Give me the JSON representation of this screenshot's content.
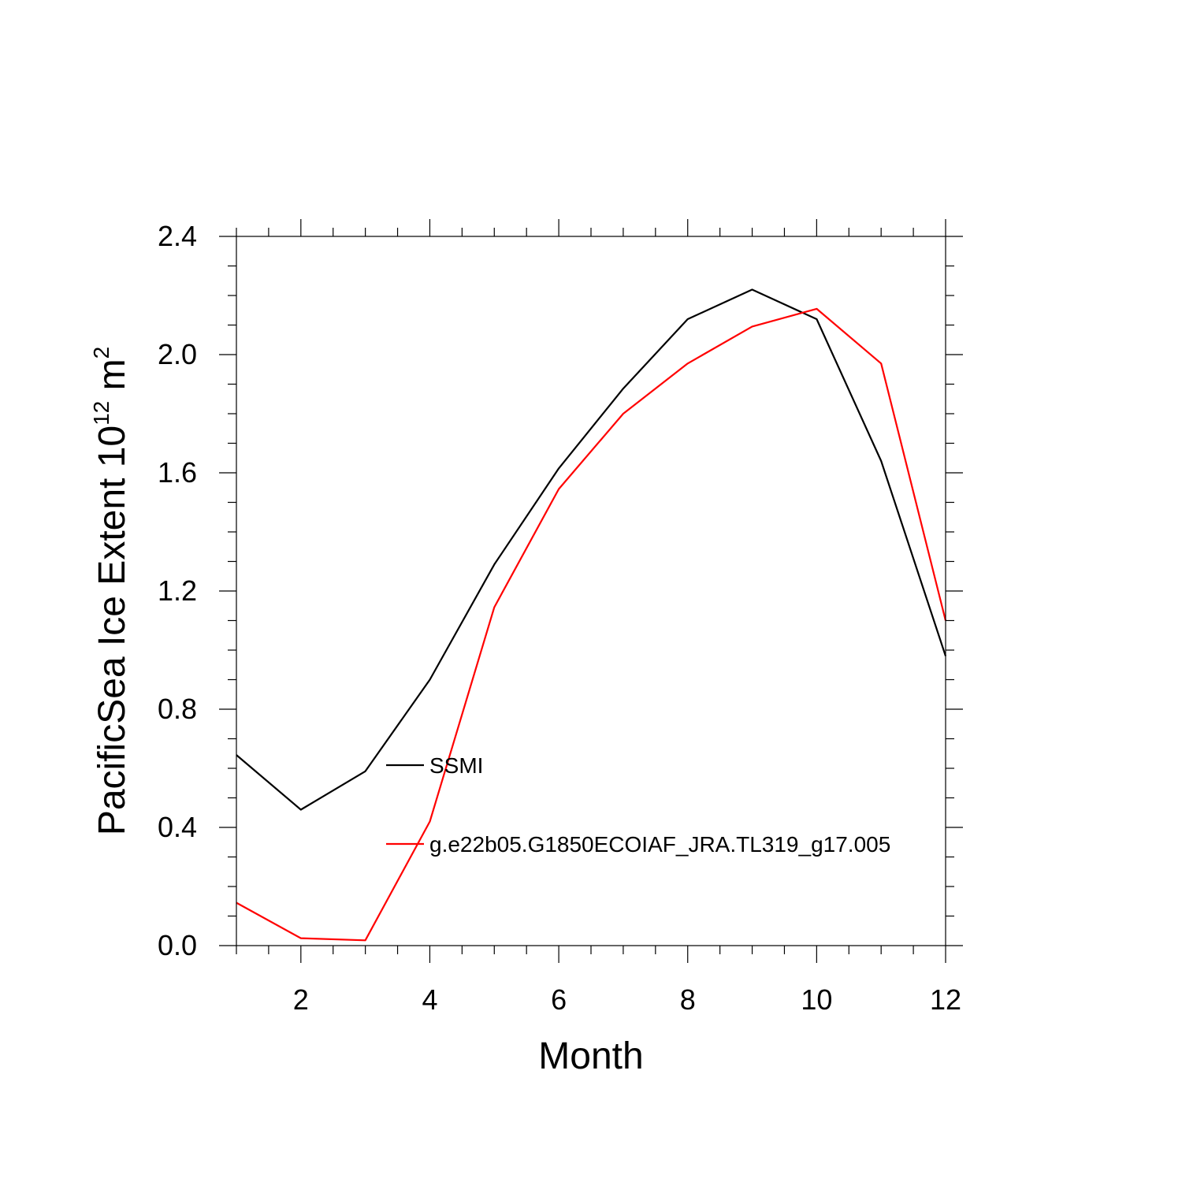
{
  "chart_data": {
    "type": "line",
    "xlabel": "Month",
    "ylabel": {
      "base": "PacificSea Ice Extent 10",
      "exponent": "12",
      "unit": " m",
      "unit_exponent": "2"
    },
    "xlim": [
      1,
      12
    ],
    "ylim": [
      0,
      2.4
    ],
    "x_ticks": [
      2,
      4,
      6,
      8,
      10,
      12
    ],
    "x_tick_labels": [
      "2",
      "4",
      "6",
      "8",
      "10",
      "12"
    ],
    "y_ticks": [
      0,
      0.4,
      0.8,
      1.2,
      1.6,
      2.0,
      2.4
    ],
    "y_tick_labels": [
      "0.0",
      "0.4",
      "0.8",
      "1.2",
      "1.6",
      "2.0",
      "2.4"
    ],
    "x": [
      1,
      2,
      3,
      4,
      5,
      6,
      7,
      8,
      9,
      10,
      11,
      12
    ],
    "series": [
      {
        "name": "SSMI",
        "color": "#000000",
        "values": [
          0.645,
          0.46,
          0.59,
          0.9,
          1.29,
          1.615,
          1.885,
          2.12,
          2.22,
          2.12,
          1.64,
          0.98
        ]
      },
      {
        "name": "g.e22b05.G1850ECOIAF_JRA.TL319_g17.005",
        "color": "#ff0000",
        "values": [
          0.145,
          0.025,
          0.018,
          0.42,
          1.145,
          1.545,
          1.8,
          1.97,
          2.095,
          2.155,
          1.97,
          1.1
        ]
      }
    ],
    "legend_position": "center"
  }
}
